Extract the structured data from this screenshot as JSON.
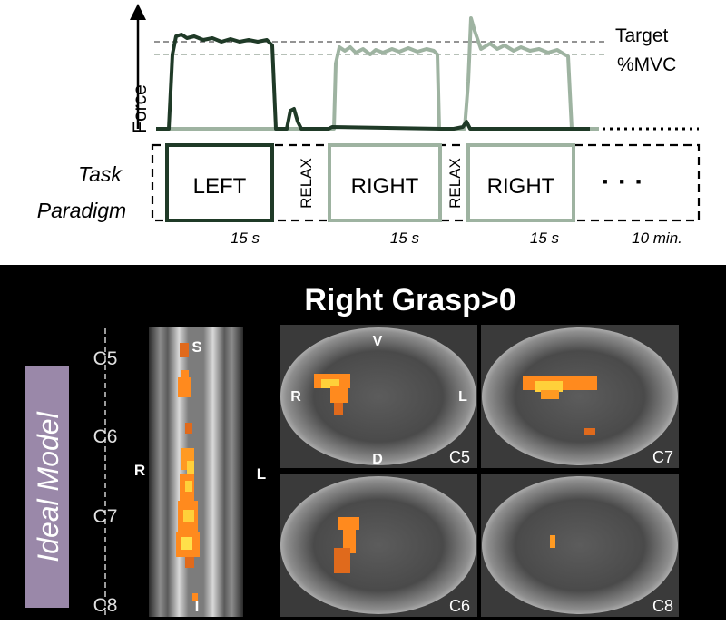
{
  "colors": {
    "left_trace": "#1f3a27",
    "right_trace": "#9eb3a1",
    "target_line": "#555555",
    "mvc_line": "#8a9a8c",
    "bottom_bg": "#000000",
    "ideal_model_bg": "#9a88a9",
    "activation": "#ff8a1e",
    "activation_hot": "#ffd03a"
  },
  "force_chart": {
    "y_axis_label": "Force",
    "target_label": "Target",
    "mvc_label": "%MVC"
  },
  "task_paradigm": {
    "label_line1": "Task",
    "label_line2": "Paradigm",
    "blocks": [
      {
        "label": "LEFT",
        "color": "#1f3a27",
        "duration": "15 s"
      },
      {
        "label": "RELAX",
        "color": "#111111",
        "duration": ""
      },
      {
        "label": "RIGHT",
        "color": "#9eb3a1",
        "duration": "15 s"
      },
      {
        "label": "RELAX",
        "color": "#111111",
        "duration": ""
      },
      {
        "label": "RIGHT",
        "color": "#9eb3a1",
        "duration": "15 s"
      }
    ],
    "ellipsis": "· · ·",
    "total_duration": "10 min."
  },
  "brain_panel": {
    "title": "Right Grasp>0",
    "model_label": "Ideal Model",
    "levels": [
      "C5",
      "C6",
      "C7",
      "C8"
    ],
    "sagittal": {
      "top": "S",
      "bottom": "I",
      "left": "R",
      "right": "L"
    },
    "axial": {
      "orientation": {
        "top": "V",
        "bottom": "D",
        "left": "R",
        "right": "L"
      },
      "slices": [
        {
          "level": "C5",
          "icon": "axial-slice-c5"
        },
        {
          "level": "C7",
          "icon": "axial-slice-c7"
        },
        {
          "level": "C6",
          "icon": "axial-slice-c6"
        },
        {
          "level": "C8",
          "icon": "axial-slice-c8"
        }
      ]
    }
  }
}
